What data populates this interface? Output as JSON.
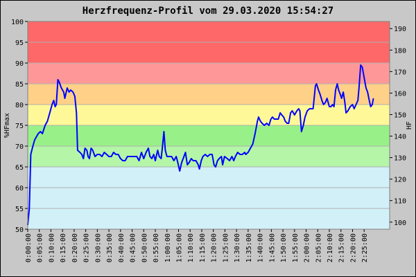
{
  "chart_data": {
    "type": "line",
    "title": "Herzfrequenz-Profil vom 29.03.2020 15:54:27",
    "ylabel": "%HFmax",
    "ylabel_right": "HF",
    "ylim": [
      50,
      100
    ],
    "ylim_right": [
      96.7,
      193.3
    ],
    "yticks": [
      50,
      55,
      60,
      65,
      70,
      75,
      80,
      85,
      90,
      95,
      100
    ],
    "yticks_right": [
      100,
      110,
      120,
      130,
      140,
      150,
      160,
      170,
      180,
      190
    ],
    "xlim_minutes": [
      0,
      156
    ],
    "xticks": [
      "0:00:00",
      "0:05:00",
      "0:10:00",
      "0:15:00",
      "0:20:00",
      "0:25:00",
      "0:30:00",
      "0:35:00",
      "0:40:00",
      "0:45:00",
      "0:50:00",
      "0:55:00",
      "1:00:00",
      "1:05:00",
      "1:10:00",
      "1:15:00",
      "1:20:00",
      "1:25:00",
      "1:30:00",
      "1:35:00",
      "1:40:00",
      "1:45:00",
      "1:50:00",
      "1:55:00",
      "2:00:00",
      "2:05:00",
      "2:10:00",
      "2:15:00",
      "2:20:00",
      "2:25:00"
    ],
    "zones": [
      {
        "from": 50,
        "to": 65,
        "color": "#d2f0f8"
      },
      {
        "from": 65,
        "to": 70,
        "color": "#b4f5a8"
      },
      {
        "from": 70,
        "to": 75,
        "color": "#98f088"
      },
      {
        "from": 75,
        "to": 80,
        "color": "#fef898"
      },
      {
        "from": 80,
        "to": 85,
        "color": "#ffd088"
      },
      {
        "from": 85,
        "to": 90,
        "color": "#fe9898"
      },
      {
        "from": 90,
        "to": 100,
        "color": "#fe6868"
      }
    ],
    "grid": true,
    "series": [
      {
        "color": "#0000ff",
        "points": [
          [
            0,
            51
          ],
          [
            0.7,
            55
          ],
          [
            1.3,
            68
          ],
          [
            2.2,
            70
          ],
          [
            3,
            71.5
          ],
          [
            4.5,
            73
          ],
          [
            5.5,
            73.5
          ],
          [
            6.3,
            73
          ],
          [
            7.5,
            75
          ],
          [
            8.5,
            76
          ],
          [
            9.5,
            78
          ],
          [
            10.5,
            80
          ],
          [
            11.2,
            81
          ],
          [
            11.8,
            79.5
          ],
          [
            12.3,
            80
          ],
          [
            13,
            86
          ],
          [
            13.5,
            85.5
          ],
          [
            14.5,
            84
          ],
          [
            15.5,
            83
          ],
          [
            16,
            81.5
          ],
          [
            17,
            84
          ],
          [
            17.8,
            83
          ],
          [
            18.5,
            83.5
          ],
          [
            19.5,
            83
          ],
          [
            20.3,
            82
          ],
          [
            21,
            78
          ],
          [
            21.5,
            69
          ],
          [
            22.5,
            68.5
          ],
          [
            23.3,
            68
          ],
          [
            24,
            67
          ],
          [
            24.7,
            69.5
          ],
          [
            25.5,
            69
          ],
          [
            26,
            67.5
          ],
          [
            26.6,
            67
          ],
          [
            27.3,
            69.5
          ],
          [
            28,
            69
          ],
          [
            29,
            67.5
          ],
          [
            30,
            68
          ],
          [
            31,
            68
          ],
          [
            32,
            67.5
          ],
          [
            33,
            68.5
          ],
          [
            34,
            68
          ],
          [
            35,
            67.5
          ],
          [
            36,
            67.5
          ],
          [
            37,
            68.5
          ],
          [
            38,
            68
          ],
          [
            39,
            68
          ],
          [
            40,
            67
          ],
          [
            41,
            66.5
          ],
          [
            42,
            66.5
          ],
          [
            43,
            67.5
          ],
          [
            44,
            67.5
          ],
          [
            45,
            67.5
          ],
          [
            46,
            67.5
          ],
          [
            47,
            67.5
          ],
          [
            48,
            66.5
          ],
          [
            49,
            68.5
          ],
          [
            50,
            67
          ],
          [
            51,
            68.5
          ],
          [
            52,
            69.5
          ],
          [
            52.7,
            67.5
          ],
          [
            53.5,
            67
          ],
          [
            54.3,
            68
          ],
          [
            55,
            66.5
          ],
          [
            56,
            69
          ],
          [
            56.7,
            67.5
          ],
          [
            57.5,
            67
          ],
          [
            58,
            69.5
          ],
          [
            58.7,
            73.5
          ],
          [
            59.3,
            69
          ],
          [
            60,
            67.5
          ],
          [
            61,
            67.5
          ],
          [
            62,
            67.5
          ],
          [
            63,
            66.5
          ],
          [
            64,
            67.5
          ],
          [
            64.7,
            66
          ],
          [
            65.5,
            64
          ],
          [
            66.3,
            66
          ],
          [
            67,
            67
          ],
          [
            68,
            68.5
          ],
          [
            68.8,
            65.5
          ],
          [
            69.5,
            66
          ],
          [
            70.5,
            67
          ],
          [
            71.3,
            66.5
          ],
          [
            72.5,
            66.5
          ],
          [
            73.5,
            65.5
          ],
          [
            74,
            64.5
          ],
          [
            74.8,
            66.5
          ],
          [
            75.5,
            67.5
          ],
          [
            76.5,
            68
          ],
          [
            77.5,
            67.5
          ],
          [
            78.5,
            68
          ],
          [
            79.5,
            68
          ],
          [
            80.3,
            65.5
          ],
          [
            81,
            65
          ],
          [
            81.8,
            66.5
          ],
          [
            82.5,
            67
          ],
          [
            83.5,
            67.5
          ],
          [
            84,
            65.5
          ],
          [
            84.8,
            67.5
          ],
          [
            86,
            67
          ],
          [
            87,
            66.5
          ],
          [
            88,
            67.5
          ],
          [
            88.8,
            66.5
          ],
          [
            89.5,
            67.5
          ],
          [
            90.5,
            68.5
          ],
          [
            91.5,
            68
          ],
          [
            92.5,
            68
          ],
          [
            93.5,
            68.5
          ],
          [
            94,
            68
          ],
          [
            95,
            68.5
          ],
          [
            96,
            69.5
          ],
          [
            97,
            70.5
          ],
          [
            98,
            73
          ],
          [
            99,
            76
          ],
          [
            99.5,
            77
          ],
          [
            100.3,
            76
          ],
          [
            101,
            75.5
          ],
          [
            102,
            75
          ],
          [
            103,
            75.5
          ],
          [
            104,
            75
          ],
          [
            104.8,
            76.5
          ],
          [
            105.5,
            77
          ],
          [
            106.3,
            76.5
          ],
          [
            107,
            76.5
          ],
          [
            108,
            76.5
          ],
          [
            108.8,
            78
          ],
          [
            109.5,
            77.5
          ],
          [
            110.3,
            77
          ],
          [
            111,
            76
          ],
          [
            111.8,
            75.5
          ],
          [
            112.5,
            75.5
          ],
          [
            113.3,
            78
          ],
          [
            114,
            78.5
          ],
          [
            115,
            77.5
          ],
          [
            116,
            78.5
          ],
          [
            116.8,
            79
          ],
          [
            117.3,
            78.5
          ],
          [
            118,
            73.5
          ],
          [
            118.8,
            75
          ],
          [
            119.5,
            77
          ],
          [
            120.5,
            78.5
          ],
          [
            121.5,
            79
          ],
          [
            122.3,
            79
          ],
          [
            123,
            79
          ],
          [
            124,
            84.5
          ],
          [
            124.5,
            85
          ],
          [
            125.3,
            83.5
          ],
          [
            126,
            82.5
          ],
          [
            126.8,
            81
          ],
          [
            127.5,
            80
          ],
          [
            128.3,
            80.5
          ],
          [
            129,
            81.5
          ],
          [
            130,
            79.5
          ],
          [
            130.7,
            79.5
          ],
          [
            131.4,
            80
          ],
          [
            132,
            79.5
          ],
          [
            132.7,
            83.5
          ],
          [
            133.4,
            85
          ],
          [
            134,
            83.5
          ],
          [
            134.7,
            82.5
          ],
          [
            135.3,
            81.5
          ],
          [
            136,
            83
          ],
          [
            136.7,
            80.5
          ],
          [
            137.2,
            78
          ],
          [
            138,
            78.5
          ],
          [
            139,
            79.5
          ],
          [
            140,
            80
          ],
          [
            140.7,
            79
          ],
          [
            141.5,
            80
          ],
          [
            142.3,
            81
          ],
          [
            142.8,
            84
          ],
          [
            143.5,
            89.5
          ],
          [
            144.2,
            89
          ],
          [
            145,
            86.5
          ],
          [
            145.8,
            84
          ],
          [
            146.5,
            83
          ],
          [
            147.2,
            81
          ],
          [
            147.8,
            79.5
          ],
          [
            148.5,
            80
          ],
          [
            149,
            81.5
          ]
        ]
      }
    ]
  }
}
